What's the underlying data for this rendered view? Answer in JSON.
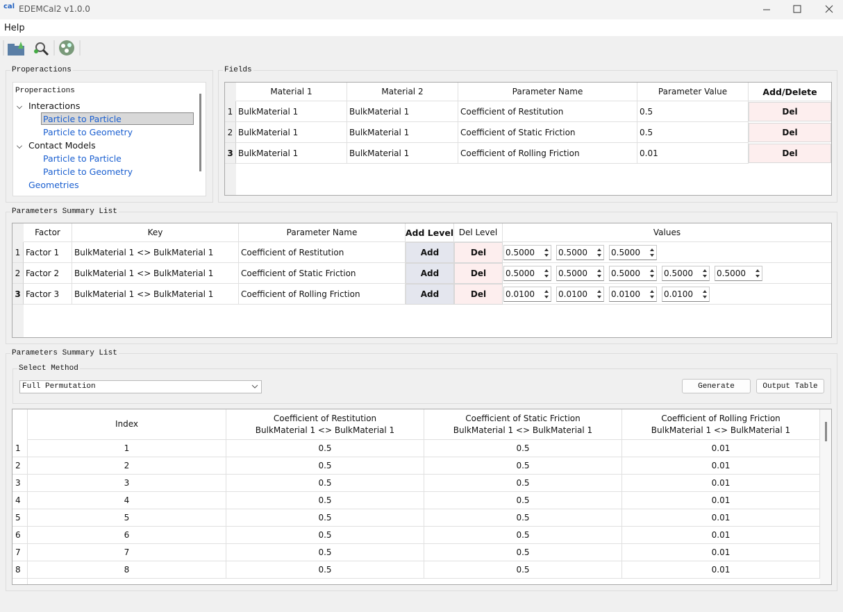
{
  "window": {
    "icon": "cal",
    "title": "EDEMCal2 v1.0.0"
  },
  "menu": [
    "Help"
  ],
  "properactions": {
    "title": "Properactions",
    "tree_header": "Properactions",
    "items": [
      {
        "label": "Interactions",
        "children": [
          "Particle to Particle",
          "Particle to Geometry"
        ]
      },
      {
        "label": "Contact Models",
        "children": [
          "Particle to Particle",
          "Particle to Geometry"
        ]
      },
      {
        "label": "Geometries"
      }
    ]
  },
  "fields": {
    "title": "Fields",
    "columns": [
      "Material 1",
      "Material 2",
      "Parameter Name",
      "Parameter Value",
      "Add/Delete"
    ],
    "rows": [
      {
        "number": "1",
        "cells": [
          "BulkMaterial 1",
          "BulkMaterial 1",
          "Coefficient of Restitution",
          "0.5"
        ],
        "button": "Del"
      },
      {
        "number": "2",
        "cells": [
          "BulkMaterial 1",
          "BulkMaterial 1",
          "Coefficient of Static Friction",
          "0.5"
        ],
        "button": "Del"
      },
      {
        "number": "3",
        "cells": [
          "BulkMaterial 1",
          "BulkMaterial 1",
          "Coefficient of Rolling Friction",
          "0.01"
        ],
        "button": "Del"
      }
    ]
  },
  "factors": {
    "title": "Parameters Summary List",
    "columns": [
      "Factor",
      "Key",
      "Parameter Name",
      "Add Level",
      "Del Level",
      "Values"
    ],
    "rows": [
      {
        "number": "1",
        "factor": "Factor 1",
        "key": "BulkMaterial 1 <> BulkMaterial 1",
        "parameter": "Coefficient of Restitution",
        "add": "Add",
        "del": "Del",
        "values": [
          "0.5000",
          "0.5000",
          "0.5000"
        ]
      },
      {
        "number": "2",
        "factor": "Factor 2",
        "key": "BulkMaterial 1 <> BulkMaterial 1",
        "parameter": "Coefficient of Static Friction",
        "add": "Add",
        "del": "Del",
        "values": [
          "0.5000",
          "0.5000",
          "0.5000",
          "0.5000",
          "0.5000"
        ]
      },
      {
        "number": "3",
        "factor": "Factor 3",
        "key": "BulkMaterial 1 <> BulkMaterial 1",
        "parameter": "Coefficient of Rolling Friction",
        "add": "Add",
        "del": "Del",
        "values": [
          "0.0100",
          "0.0100",
          "0.0100",
          "0.0100"
        ]
      }
    ]
  },
  "results": {
    "title": "Parameters Summary List",
    "method_label": "Select Method",
    "method": "Full Permutation",
    "buttons": [
      "Generate",
      "Output Table"
    ],
    "columns": [
      {
        "name": "Index"
      },
      {
        "name": "Coefficient of Restitution",
        "key": "BulkMaterial 1 <> BulkMaterial 1"
      },
      {
        "name": "Coefficient of Static Friction",
        "key": "BulkMaterial 1 <> BulkMaterial 1"
      },
      {
        "name": "Coefficient of Rolling Friction",
        "key": "BulkMaterial 1 <> BulkMaterial 1"
      }
    ],
    "rows": [
      {
        "number": "1",
        "cells": [
          "1",
          "0.5",
          "0.5",
          "0.01"
        ]
      },
      {
        "number": "2",
        "cells": [
          "2",
          "0.5",
          "0.5",
          "0.01"
        ]
      },
      {
        "number": "3",
        "cells": [
          "3",
          "0.5",
          "0.5",
          "0.01"
        ]
      },
      {
        "number": "4",
        "cells": [
          "4",
          "0.5",
          "0.5",
          "0.01"
        ]
      },
      {
        "number": "5",
        "cells": [
          "5",
          "0.5",
          "0.5",
          "0.01"
        ]
      },
      {
        "number": "6",
        "cells": [
          "6",
          "0.5",
          "0.5",
          "0.01"
        ]
      },
      {
        "number": "7",
        "cells": [
          "7",
          "0.5",
          "0.5",
          "0.01"
        ]
      },
      {
        "number": "8",
        "cells": [
          "8",
          "0.5",
          "0.5",
          "0.01"
        ]
      }
    ]
  }
}
